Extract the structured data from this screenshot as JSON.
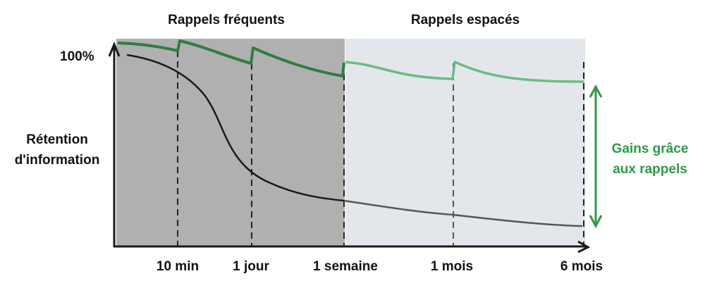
{
  "headers": {
    "frequent": "Rappels fréquents",
    "spaced": "Rappels espacés"
  },
  "y_axis": {
    "top_label": "100%",
    "label_line1": "Rétention",
    "label_line2": "d'information"
  },
  "x_ticks": [
    "10 min",
    "1 jour",
    "1 semaine",
    "1 mois",
    "6 mois"
  ],
  "gain_label": {
    "line1": "Gains grâce",
    "line2": "aux rappels"
  },
  "colors": {
    "frequent_bg": "#b0b0b0",
    "spaced_bg": "#e3e7ec",
    "green_dark": "#2f7d3f",
    "green_light": "#6dbb84",
    "gain": "#2e9a48",
    "forgetting_curve": "#1a1a1a"
  }
}
